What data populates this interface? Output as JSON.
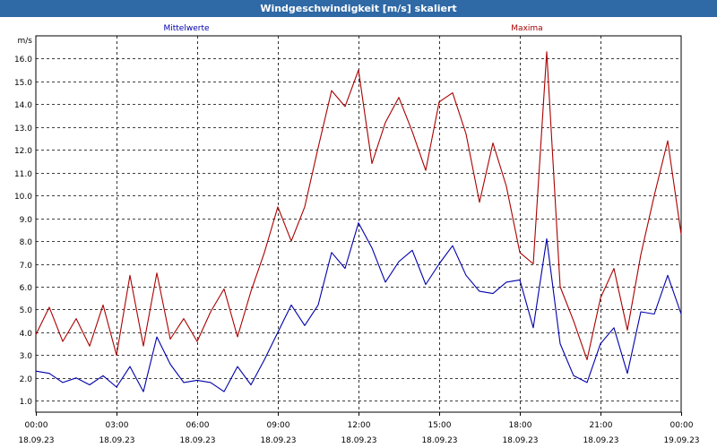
{
  "title": "Windgeschwindigkeit [m/s] skaliert",
  "legend": {
    "mean": "Mittelwerte",
    "max": "Maxima"
  },
  "colors": {
    "mean": "#0000aa",
    "max": "#aa0000",
    "titlebar": "#2f69a6"
  },
  "chart_data": {
    "type": "line",
    "title": "Windgeschwindigkeit [m/s] skaliert",
    "ylabel": "m/s",
    "ylim": [
      0.5,
      17.0
    ],
    "yticks": [
      1.0,
      2.0,
      3.0,
      4.0,
      5.0,
      6.0,
      7.0,
      8.0,
      9.0,
      10.0,
      11.0,
      12.0,
      13.0,
      14.0,
      15.0,
      16.0
    ],
    "xlim_hours": [
      0,
      24
    ],
    "xticks": [
      {
        "time": "00:00",
        "date": "18.09.23"
      },
      {
        "time": "03:00",
        "date": "18.09.23"
      },
      {
        "time": "06:00",
        "date": "18.09.23"
      },
      {
        "time": "09:00",
        "date": "18.09.23"
      },
      {
        "time": "12:00",
        "date": "18.09.23"
      },
      {
        "time": "15:00",
        "date": "18.09.23"
      },
      {
        "time": "18:00",
        "date": "18.09.23"
      },
      {
        "time": "21:00",
        "date": "18.09.23"
      },
      {
        "time": "00:00",
        "date": "19.09.23"
      }
    ],
    "grid": true,
    "legend_placement": "top",
    "series": [
      {
        "name": "Mittelwerte",
        "color": "#0000aa",
        "x_hours": [
          0.0,
          0.5,
          1.0,
          1.5,
          2.0,
          2.5,
          3.0,
          3.5,
          4.0,
          4.5,
          5.0,
          5.5,
          6.0,
          6.5,
          7.0,
          7.5,
          8.0,
          8.5,
          9.0,
          9.5,
          10.0,
          10.5,
          11.0,
          11.5,
          12.0,
          12.5,
          13.0,
          13.5,
          14.0,
          14.5,
          15.0,
          15.5,
          16.0,
          16.5,
          17.0,
          17.5,
          18.0,
          18.5,
          19.0,
          19.5,
          20.0,
          20.5,
          21.0,
          21.5,
          22.0,
          22.5,
          23.0,
          23.5,
          24.0
        ],
        "values": [
          2.3,
          2.2,
          1.8,
          2.0,
          1.7,
          2.1,
          1.6,
          2.5,
          1.4,
          3.8,
          2.6,
          1.8,
          1.9,
          1.8,
          1.4,
          2.5,
          1.7,
          2.8,
          4.0,
          5.2,
          4.3,
          5.2,
          7.5,
          6.8,
          8.8,
          7.7,
          6.2,
          7.1,
          7.6,
          6.1,
          7.0,
          7.8,
          6.5,
          5.8,
          5.7,
          6.2,
          6.3,
          4.2,
          8.1,
          3.5,
          2.1,
          1.8,
          3.5,
          4.2,
          2.2,
          4.9,
          4.8,
          6.5,
          4.8
        ]
      },
      {
        "name": "Maxima",
        "color": "#aa0000",
        "x_hours": [
          0.0,
          0.5,
          1.0,
          1.5,
          2.0,
          2.5,
          3.0,
          3.5,
          4.0,
          4.5,
          5.0,
          5.5,
          6.0,
          6.5,
          7.0,
          7.5,
          8.0,
          8.5,
          9.0,
          9.5,
          10.0,
          10.5,
          11.0,
          11.5,
          12.0,
          12.5,
          13.0,
          13.5,
          14.0,
          14.5,
          15.0,
          15.5,
          16.0,
          16.5,
          17.0,
          17.5,
          18.0,
          18.5,
          19.0,
          19.5,
          20.0,
          20.5,
          21.0,
          21.5,
          22.0,
          22.5,
          23.0,
          23.5,
          24.0
        ],
        "values": [
          3.9,
          5.1,
          3.6,
          4.6,
          3.4,
          5.2,
          3.0,
          6.5,
          3.4,
          6.6,
          3.7,
          4.6,
          3.6,
          4.9,
          5.9,
          3.8,
          5.8,
          7.5,
          9.5,
          8.0,
          9.5,
          12.1,
          14.6,
          13.9,
          15.5,
          11.4,
          13.2,
          14.3,
          12.8,
          11.1,
          14.1,
          14.5,
          12.7,
          9.7,
          12.3,
          10.4,
          7.5,
          7.0,
          16.3,
          6.0,
          4.5,
          2.8,
          5.5,
          6.8,
          4.1,
          7.4,
          10.0,
          12.4,
          8.3
        ]
      }
    ]
  }
}
